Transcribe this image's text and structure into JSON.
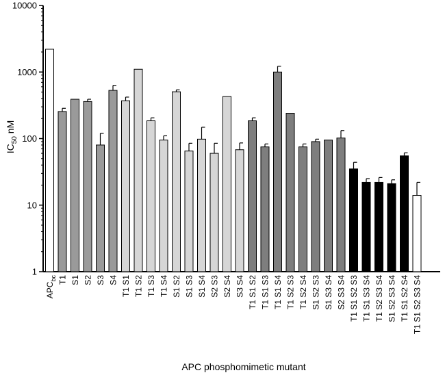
{
  "chart_data": {
    "type": "bar",
    "title": "",
    "xlabel": "APC phosphomimetic mutant",
    "ylabel": "IC50 nM",
    "ylabel_main": "IC",
    "ylabel_sub": "50",
    "ylabel_suffix": " nM",
    "yscale": "log",
    "ylim": [
      1,
      10000
    ],
    "yticks": [
      "1",
      "10",
      "100",
      "1000",
      "10000"
    ],
    "grid": false,
    "legend": "none",
    "categories": [
      "APCbc",
      "T1",
      "S1",
      "S2",
      "S3",
      "S4",
      "T1 S1",
      "T1 S2",
      "T1 S3",
      "T1 S4",
      "S1 S2",
      "S1 S3",
      "S1 S4",
      "S2 S3",
      "S2 S4",
      "S3 S4",
      "T1 S1 S2",
      "T1 S1 S3",
      "T1 S1 S4",
      "T1 S2 S3",
      "T1 S2 S4",
      "S1 S2 S3",
      "S1 S3 S4",
      "S2 S3 S4",
      "T1 S1 S2 S3",
      "T1 S1 S3 S4",
      "T1 S2 S3 S4",
      "S1 S2 S3 S4",
      "T1 S1 S2 S4",
      "T1 S1 S2 S3 S4"
    ],
    "first_label": {
      "main": "APC",
      "sub": "bc"
    },
    "values": [
      2200,
      255,
      390,
      360,
      80,
      530,
      370,
      1100,
      185,
      95,
      505,
      65,
      98,
      60,
      430,
      68,
      185,
      75,
      1000,
      240,
      75,
      90,
      95,
      102,
      35,
      22,
      22,
      21,
      55,
      14
    ],
    "errors": [
      0,
      30,
      0,
      30,
      40,
      100,
      50,
      0,
      20,
      15,
      35,
      20,
      50,
      25,
      0,
      18,
      20,
      8,
      220,
      0,
      8,
      8,
      0,
      30,
      9,
      3,
      4,
      3,
      6,
      8
    ],
    "groups": [
      "white",
      "mid",
      "mid",
      "mid",
      "mid",
      "mid",
      "light",
      "light",
      "light",
      "light",
      "light",
      "light",
      "light",
      "light",
      "light",
      "light",
      "dark",
      "dark",
      "dark",
      "dark",
      "dark",
      "dark",
      "dark",
      "dark",
      "black",
      "black",
      "black",
      "black",
      "black",
      "white"
    ],
    "colors": {
      "white": "#ffffff",
      "mid": "#9a9a9a",
      "light": "#d6d6d6",
      "dark": "#7e7e7e",
      "black": "#000000",
      "stroke": "#000000"
    }
  }
}
